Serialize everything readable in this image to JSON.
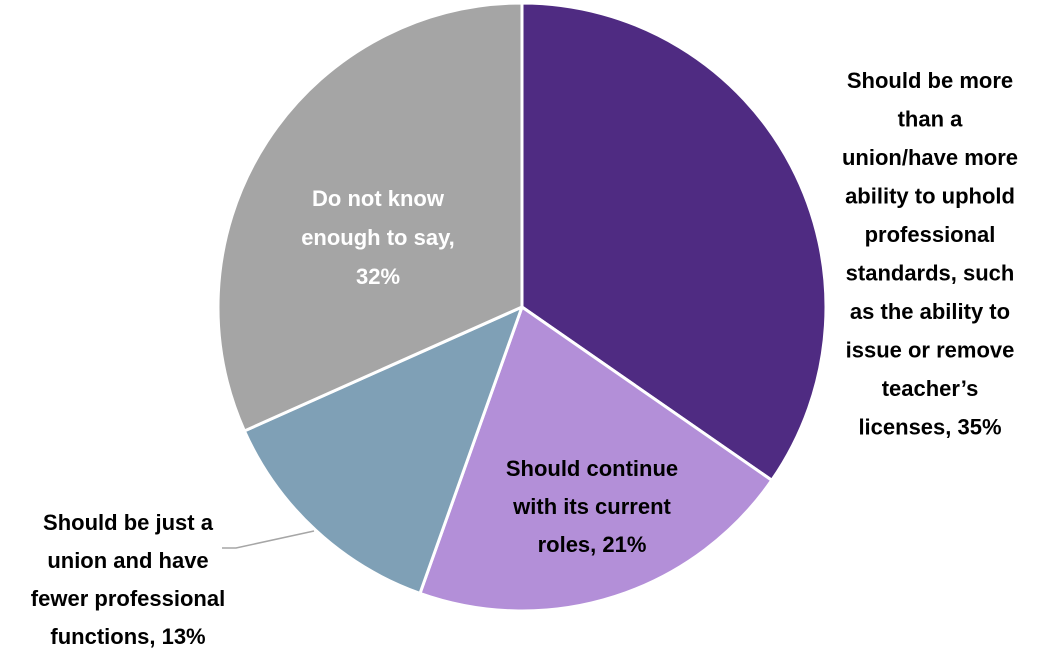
{
  "chart_data": {
    "type": "pie",
    "title": "",
    "slices": [
      {
        "label": "Should be more than a union/have more ability to uphold professional standards, such as the ability to issue or remove teacher’s licenses",
        "value": 35,
        "display": "Should be more than a union/have more ability to uphold professional standards, such as the ability to issue or remove teacher’s licenses, 35%",
        "lines": [
          "Should be more",
          "than a",
          "union/have more",
          "ability to uphold",
          "professional",
          "standards, such",
          "as the ability to",
          "issue or remove",
          "teacher’s",
          "licenses, 35%"
        ],
        "color": "#4f2b82",
        "label_color": "#000000"
      },
      {
        "label": "Should continue with its current roles",
        "value": 21,
        "display": "Should continue with its current roles, 21%",
        "lines": [
          "Should continue",
          "with its current",
          "roles, 21%"
        ],
        "color": "#b38fd8",
        "label_color": "#000000"
      },
      {
        "label": "Should be just a union and have fewer professional functions",
        "value": 13,
        "display": "Should be just a union and have fewer professional functions, 13%",
        "lines": [
          "Should be just a",
          "union and have",
          "fewer professional",
          "functions, 13%"
        ],
        "color": "#7fa0b6",
        "label_color": "#000000"
      },
      {
        "label": "Do not know enough to say",
        "value": 32,
        "display": "Do not know enough to say, 32%",
        "lines": [
          "Do not know",
          "enough to say,",
          "32%"
        ],
        "color": "#a5a5a5",
        "label_color": "#ffffff"
      }
    ],
    "start_angle": "12 o'clock",
    "direction": "clockwise",
    "legend": "none"
  }
}
